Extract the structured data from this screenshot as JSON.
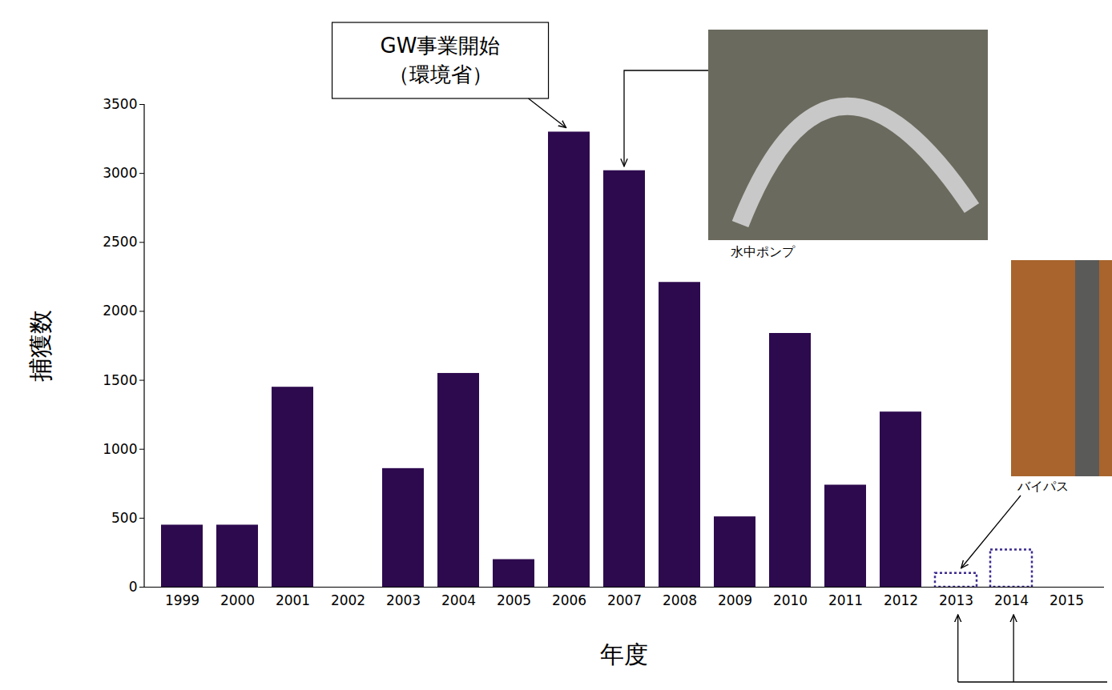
{
  "chart_data": {
    "type": "bar",
    "x_label": "年度",
    "y_label": "捕獲数",
    "categories": [
      "1999",
      "2000",
      "2001",
      "2002",
      "2003",
      "2004",
      "2005",
      "2006",
      "2007",
      "2008",
      "2009",
      "2010",
      "2011",
      "2012",
      "2013",
      "2014",
      "2015"
    ],
    "series": [
      {
        "color": "#2d0a4e",
        "line_style": "solid",
        "values": [
          450,
          450,
          1450,
          0,
          860,
          1550,
          200,
          3300,
          3020,
          2210,
          510,
          1840,
          740,
          1270,
          null,
          null,
          null
        ]
      },
      {
        "color": "#3d2a8f",
        "line_style": "dotted",
        "values": [
          null,
          null,
          null,
          null,
          null,
          null,
          null,
          null,
          null,
          null,
          null,
          null,
          null,
          null,
          100,
          270,
          null
        ]
      }
    ],
    "ylim": [
      0,
      3500
    ],
    "yticks": [
      0,
      500,
      1000,
      1500,
      2000,
      2500,
      3000,
      3500
    ],
    "grid": false,
    "annotations": [
      {
        "text": "GW事業開始\n（環境省）",
        "target": "2006"
      },
      {
        "text": "水中ポンプ",
        "target": "2007"
      },
      {
        "text": "バイパス",
        "target": "2013"
      }
    ]
  }
}
